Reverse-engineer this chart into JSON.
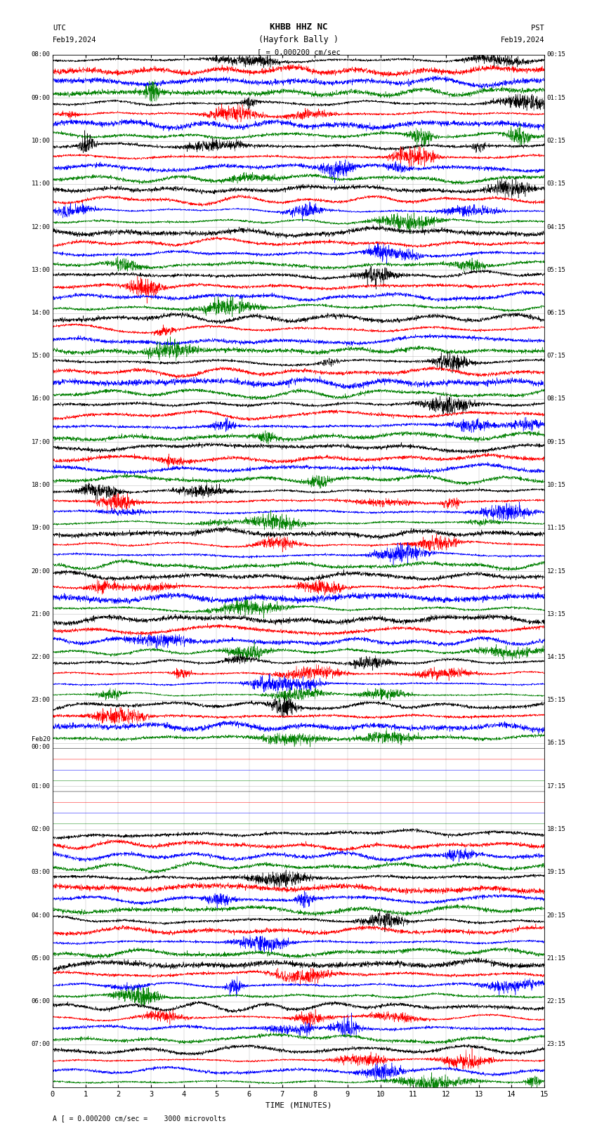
{
  "title_line1": "KHBB HHZ NC",
  "title_line2": "(Hayfork Bally )",
  "scale_text": "= 0.000200 cm/sec",
  "footer_text": "A [ = 0.000200 cm/sec =    3000 microvolts",
  "xlabel": "TIME (MINUTES)",
  "left_times": [
    "08:00",
    "09:00",
    "10:00",
    "11:00",
    "12:00",
    "13:00",
    "14:00",
    "15:00",
    "16:00",
    "17:00",
    "18:00",
    "19:00",
    "20:00",
    "21:00",
    "22:00",
    "23:00",
    "Feb20\n00:00",
    "01:00",
    "02:00",
    "03:00",
    "04:00",
    "05:00",
    "06:00",
    "07:00"
  ],
  "right_times": [
    "00:15",
    "01:15",
    "02:15",
    "03:15",
    "04:15",
    "05:15",
    "06:15",
    "07:15",
    "08:15",
    "09:15",
    "10:15",
    "11:15",
    "12:15",
    "13:15",
    "14:15",
    "15:15",
    "16:15",
    "17:15",
    "18:15",
    "19:15",
    "20:15",
    "21:15",
    "22:15",
    "23:15"
  ],
  "n_rows": 24,
  "n_traces_per_row": 4,
  "trace_colors": [
    "black",
    "red",
    "blue",
    "green"
  ],
  "bg_color": "white",
  "xlim": [
    0,
    15
  ],
  "xticks": [
    0,
    1,
    2,
    3,
    4,
    5,
    6,
    7,
    8,
    9,
    10,
    11,
    12,
    13,
    14,
    15
  ],
  "fig_width": 8.5,
  "fig_height": 16.13,
  "dpi": 100,
  "seed": 42,
  "quiet_rows": [
    16,
    17
  ],
  "quiet_partial_rows": [
    17
  ],
  "n_points": 3000
}
